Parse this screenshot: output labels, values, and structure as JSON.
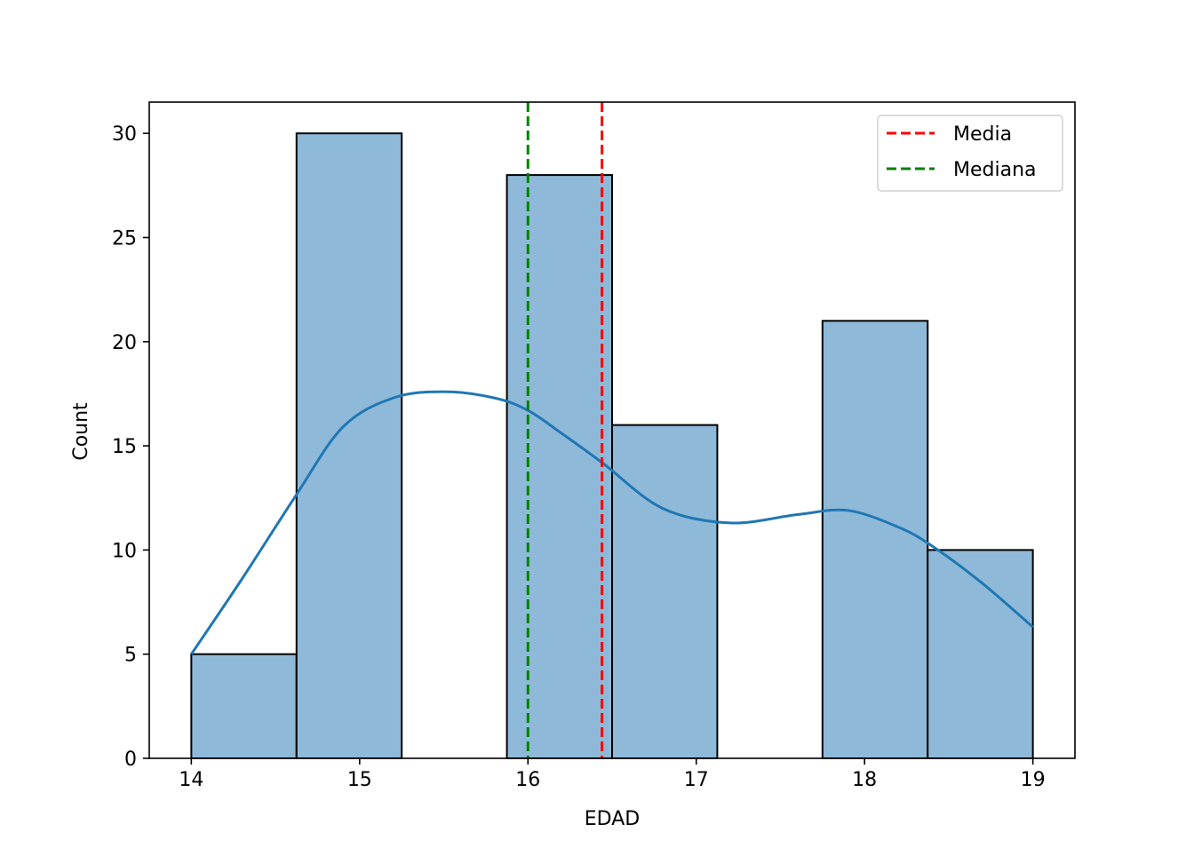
{
  "chart_data": {
    "type": "bar",
    "subtype": "histogram with kde",
    "xlabel": "EDAD",
    "ylabel": "Count",
    "xlim": [
      13.75,
      19.25
    ],
    "ylim": [
      0,
      31.5
    ],
    "xticks": [
      "14",
      "15",
      "16",
      "17",
      "18",
      "19"
    ],
    "yticks": [
      "0",
      "5",
      "10",
      "15",
      "20",
      "25",
      "30"
    ],
    "grid": false,
    "bins": [
      {
        "start": 14.0,
        "end": 14.625,
        "count": 5
      },
      {
        "start": 14.625,
        "end": 15.25,
        "count": 30
      },
      {
        "start": 15.25,
        "end": 15.875,
        "count": 0
      },
      {
        "start": 15.875,
        "end": 16.5,
        "count": 28
      },
      {
        "start": 16.5,
        "end": 17.125,
        "count": 16
      },
      {
        "start": 17.125,
        "end": 17.75,
        "count": 0
      },
      {
        "start": 17.75,
        "end": 18.375,
        "count": 21
      },
      {
        "start": 18.375,
        "end": 19.0,
        "count": 10
      }
    ],
    "kde": {
      "x": [
        14.0,
        14.3,
        14.62,
        14.9,
        15.2,
        15.5,
        15.8,
        16.0,
        16.2,
        16.44,
        16.8,
        17.2,
        17.6,
        17.9,
        18.2,
        18.4,
        18.7,
        19.0
      ],
      "y": [
        5.0,
        8.6,
        12.6,
        15.9,
        17.3,
        17.6,
        17.3,
        16.7,
        15.6,
        14.2,
        12.0,
        11.3,
        11.7,
        11.9,
        11.1,
        10.2,
        8.4,
        6.3
      ]
    },
    "lines": [
      {
        "name": "Media",
        "x": 16.44,
        "color": "#ff0000",
        "style": "dashed"
      },
      {
        "name": "Mediana",
        "x": 16.0,
        "color": "#008000",
        "style": "dashed"
      }
    ],
    "bar_color": "#8fb9d8",
    "kde_color": "#1f77b4",
    "legend_position": "top-right"
  }
}
